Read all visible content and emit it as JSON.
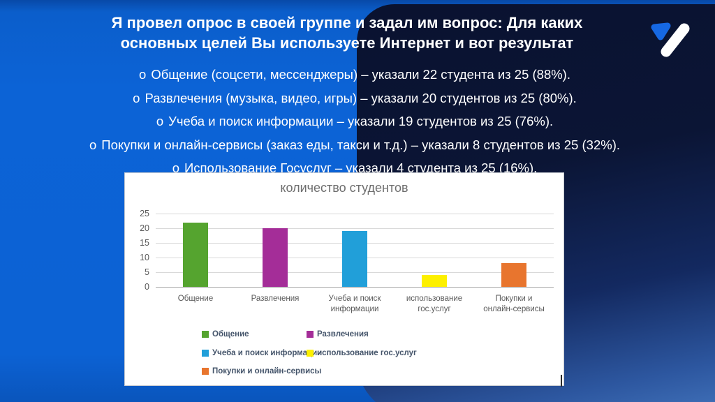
{
  "theme": {
    "bright_blue": "#0C63D6",
    "dark_navy": "#0A1230",
    "gradient_blue_bottom": "#4476BE",
    "text_color": "#FFFFFF",
    "logo_blue": "#1668E3",
    "logo_white": "#FFFFFF"
  },
  "slide": {
    "title_lines": [
      "Я провел опрос в своей группе и задал им вопрос: Для каких",
      "основных целей Вы используете Интернет и вот результат"
    ],
    "bullets": [
      {
        "marker": "о",
        "text": "Общение (соцсети, мессенджеры) – указали 22 студента из 25 (88%)."
      },
      {
        "marker": "о",
        "text": "Развлечения (музыка, видео, игры) – указали 20 студентов из 25 (80%)."
      },
      {
        "marker": "о",
        "text": "Учеба и поиск информации – указали 19 студентов из 25 (76%)."
      },
      {
        "marker": "о",
        "text": "Покупки и онлайн-сервисы (заказ еды, такси и т.д.) – указали 8 студентов из 25 (32%)."
      },
      {
        "marker": "о",
        "text": "Использование Госуслуг – указали 4 студента из 25 (16%)."
      }
    ]
  },
  "chart_data": {
    "type": "bar",
    "title": "количество студентов",
    "categories": [
      "Общение",
      "Развлечения",
      "Учеба и поиск информации",
      "использование гос.услуг",
      "Покупки и онлайн-сервисы"
    ],
    "values": [
      22,
      20,
      19,
      4,
      8
    ],
    "colors": [
      "#55A42F",
      "#A42D98",
      "#219FD9",
      "#FDF000",
      "#E8752E"
    ],
    "xlabel": "",
    "ylabel": "",
    "ylim": [
      0,
      25
    ],
    "yticks": [
      0,
      5,
      10,
      15,
      20,
      25
    ],
    "grid": true,
    "legend_position": "bottom",
    "legend": [
      "Общение",
      "Развлечения",
      "Учеба и поиск информации",
      "использование гос.услуг",
      "Покупки и онлайн-сервисы"
    ],
    "x_tick_labels_wrapped": [
      [
        "Общение"
      ],
      [
        "Развлечения"
      ],
      [
        "Учеба и поиск",
        "информации"
      ],
      [
        "использование",
        "гос.услуг"
      ],
      [
        "Покупки и",
        "онлайн-сервисы"
      ]
    ]
  }
}
